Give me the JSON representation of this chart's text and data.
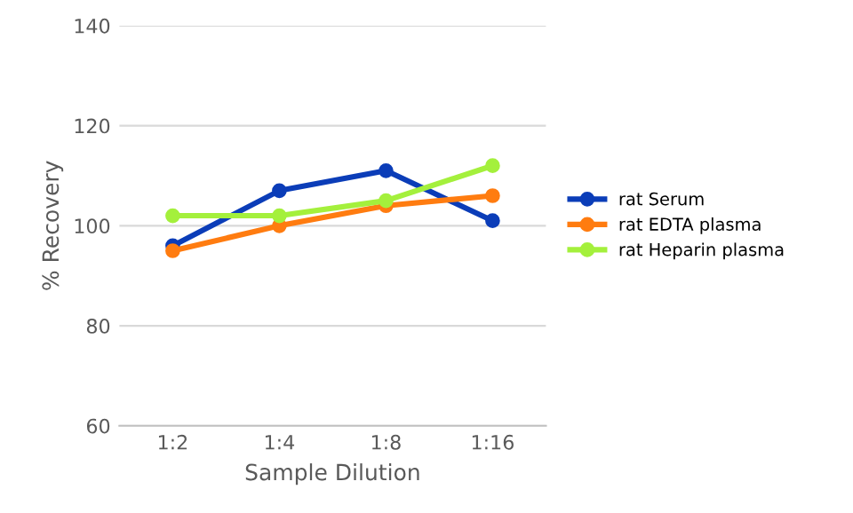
{
  "chart_data": {
    "type": "line",
    "xlabel": "Sample Dilution",
    "ylabel": "% Recovery",
    "categories": [
      "1:2",
      "1:4",
      "1:8",
      "1:16"
    ],
    "series": [
      {
        "name": "rat Serum",
        "color": "#0b3db8",
        "values": [
          96,
          107,
          111,
          101
        ]
      },
      {
        "name": "rat EDTA plasma",
        "color": "#ff7c10",
        "values": [
          95,
          100,
          104,
          106
        ]
      },
      {
        "name": "rat Heparin plasma",
        "color": "#a4f03c",
        "values": [
          102,
          102,
          105,
          112
        ]
      }
    ],
    "ylim": [
      60,
      140
    ],
    "yticks": [
      60,
      80,
      100,
      120,
      140
    ],
    "grid": "y",
    "legend": "right",
    "marker": "circle",
    "line_style": "solid"
  }
}
